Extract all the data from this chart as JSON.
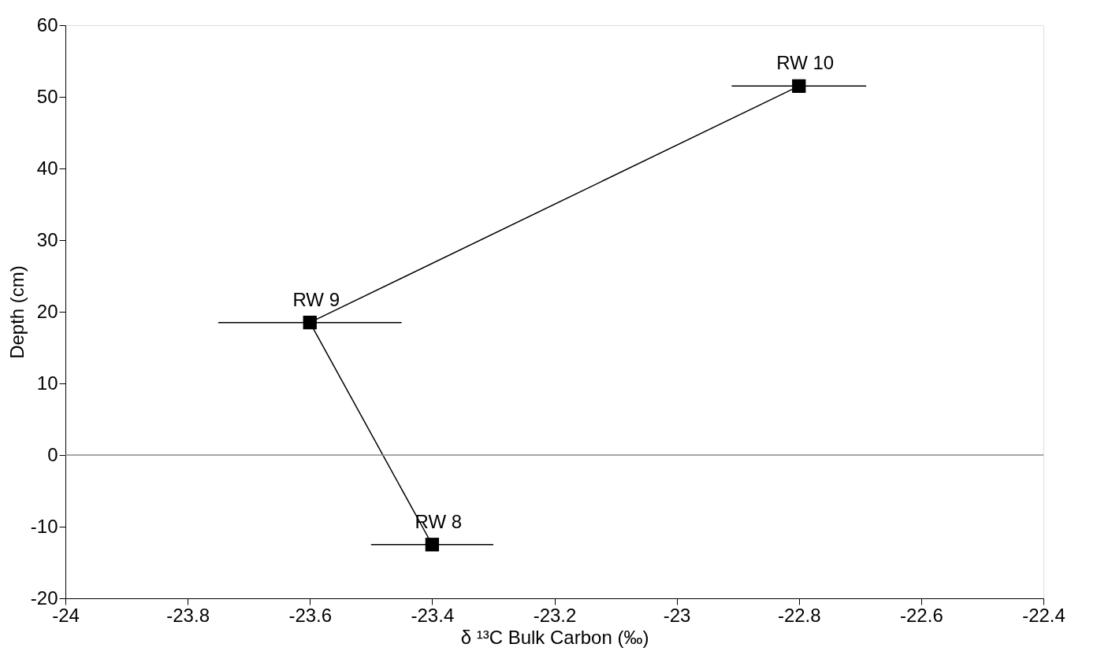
{
  "chart_data": {
    "type": "line",
    "xlabel": "δ ¹³C Bulk Carbon (‰)",
    "ylabel": "Depth (cm)",
    "x": [
      -23.4,
      -23.6,
      -22.8
    ],
    "series": [
      {
        "color": "#000000",
        "values": [
          -12.5,
          18.5,
          51.5
        ],
        "xerrors": [
          0.1,
          0.15,
          0.11
        ]
      }
    ],
    "marker": "square",
    "line_style": "solid",
    "grid": false,
    "xlim": [
      -24,
      -22.4
    ],
    "xticks": [
      -24,
      -23.8,
      -23.6,
      -23.4,
      -23.2,
      -23,
      -22.8,
      -22.6,
      -22.4
    ],
    "ylim": [
      -20,
      60
    ],
    "yticks": [
      -20,
      -10,
      0,
      10,
      20,
      30,
      40,
      50,
      60
    ],
    "ref_lines": [
      {
        "axis": "y",
        "value": 0,
        "color": "#888888",
        "line_style": "solid"
      }
    ],
    "annotations": [
      {
        "text": "RW 8",
        "x": -23.4,
        "y": -12.5
      },
      {
        "text": "RW 9",
        "x": -23.6,
        "y": 18.5
      },
      {
        "text": "RW 10",
        "x": -22.8,
        "y": 51.5
      }
    ]
  }
}
